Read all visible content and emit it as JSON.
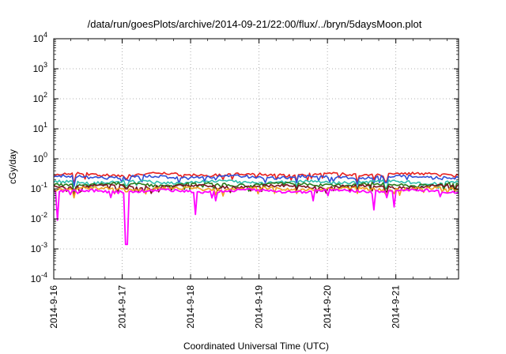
{
  "chart_data": {
    "type": "line",
    "title": "/data/run/goesPlots/archive/2014-09-21/22:00/flux/../bryn/5daysMoon.plot",
    "xlabel": "Coordinated Universal Time (UTC)",
    "ylabel": "cGy/day",
    "yscale": "log",
    "ylim": [
      0.0001,
      10000
    ],
    "xlim": [
      "2014-09-16",
      "2014-09-21T22:00"
    ],
    "x_ticks": [
      "2014-9-16",
      "2014-9-17",
      "2014-9-18",
      "2014-9-19",
      "2014-9-20",
      "2014-9-21"
    ],
    "y_ticks": [
      {
        "base": "10",
        "exp": "-4"
      },
      {
        "base": "10",
        "exp": "-3"
      },
      {
        "base": "10",
        "exp": "-2"
      },
      {
        "base": "10",
        "exp": "-1"
      },
      {
        "base": "10",
        "exp": "0"
      },
      {
        "base": "10",
        "exp": "1"
      },
      {
        "base": "10",
        "exp": "2"
      },
      {
        "base": "10",
        "exp": "3"
      },
      {
        "base": "10",
        "exp": "4"
      }
    ],
    "grid": true,
    "legend": "none",
    "series": [
      {
        "color": "#e8201e",
        "base": 0.3,
        "dips": [
          [
            0.05,
            0.14
          ],
          [
            0.18,
            0.22
          ],
          [
            0.6,
            0.18
          ],
          [
            0.75,
            0.16
          ],
          [
            0.82,
            0.18
          ]
        ]
      },
      {
        "color": "#2f4fd6",
        "base": 0.25,
        "dips": [
          [
            0.05,
            0.12
          ],
          [
            0.18,
            0.2
          ],
          [
            0.6,
            0.16
          ],
          [
            0.75,
            0.14
          ],
          [
            0.82,
            0.16
          ]
        ]
      },
      {
        "color": "#2fbfae",
        "base": 0.17,
        "dips": [
          [
            0.05,
            0.08
          ],
          [
            0.18,
            0.13
          ],
          [
            0.6,
            0.12
          ],
          [
            0.75,
            0.1
          ],
          [
            0.82,
            0.11
          ]
        ]
      },
      {
        "color": "#2a7a1a",
        "base": 0.14,
        "dips": [
          [
            0.05,
            0.07
          ],
          [
            0.18,
            0.11
          ],
          [
            0.6,
            0.1
          ],
          [
            0.75,
            0.09
          ],
          [
            0.82,
            0.1
          ]
        ]
      },
      {
        "color": "#7a1020",
        "base": 0.12,
        "dips": [
          [
            0.05,
            0.06
          ],
          [
            0.18,
            0.1
          ],
          [
            0.6,
            0.09
          ],
          [
            0.75,
            0.08
          ],
          [
            0.82,
            0.09
          ]
        ]
      },
      {
        "color": "#f0a020",
        "base": 0.1,
        "dips": [
          [
            0.05,
            0.05
          ],
          [
            0.18,
            0.08
          ],
          [
            0.6,
            0.07
          ],
          [
            0.75,
            0.07
          ],
          [
            0.82,
            0.07
          ]
        ]
      },
      {
        "color": "#ff00ff",
        "base": 0.085,
        "dips": [
          [
            0.01,
            0.009
          ],
          [
            0.18,
            0.0014
          ],
          [
            0.35,
            0.014
          ],
          [
            0.4,
            0.04
          ],
          [
            0.64,
            0.04
          ],
          [
            0.79,
            0.02
          ],
          [
            0.84,
            0.025
          ]
        ]
      }
    ]
  }
}
